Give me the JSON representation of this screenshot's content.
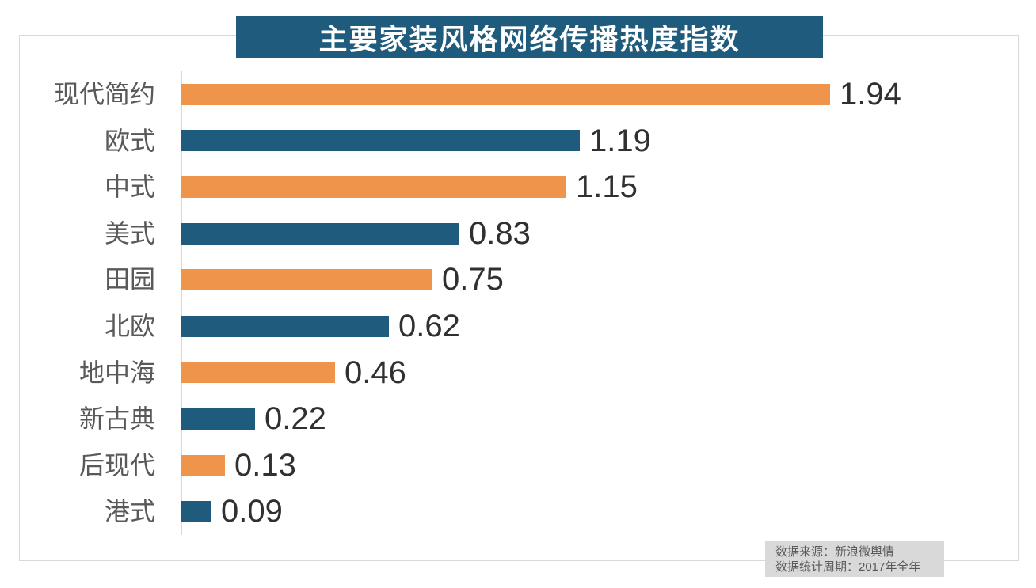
{
  "chart": {
    "title": "主要家装风格网络传播热度指数",
    "title_bg": "#1e5b7c",
    "title_color": "#ffffff"
  },
  "chart_data": {
    "type": "bar",
    "orientation": "horizontal",
    "title": "主要家装风格网络传播热度指数",
    "categories": [
      "现代简约",
      "欧式",
      "中式",
      "美式",
      "田园",
      "北欧",
      "地中海",
      "新古典",
      "后现代",
      "港式"
    ],
    "values": [
      1.94,
      1.19,
      1.15,
      0.83,
      0.75,
      0.62,
      0.46,
      0.22,
      0.13,
      0.09
    ],
    "value_labels": [
      "1.94",
      "1.19",
      "1.15",
      "0.83",
      "0.75",
      "0.62",
      "0.46",
      "0.22",
      "0.13",
      "0.09"
    ],
    "xlabel": "",
    "ylabel": "",
    "xlim": [
      0,
      2.5
    ],
    "gridline_step": 0.5,
    "grid": true,
    "legend": false,
    "bar_colors_alternating": [
      "#ef944b",
      "#1e5b7c"
    ],
    "category_label_color": "#595959",
    "value_label_color": "#303030",
    "grid_color": "#d9d9d9"
  },
  "source": {
    "line1": "数据来源：新浪微舆情",
    "line2": "数据统计周期：2017年全年",
    "bg": "#d9d9d9",
    "text_color": "#595959"
  }
}
